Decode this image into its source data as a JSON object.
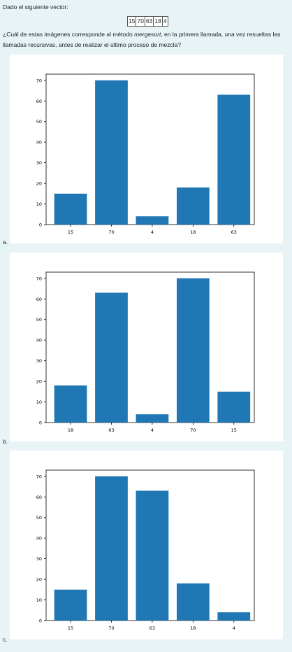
{
  "question": {
    "intro": "Dado el siguiente vector:",
    "vector": [
      "15",
      "70",
      "63",
      "18",
      "4"
    ],
    "text_before": "¿Cuál de estas imágenes corresponde al método ",
    "method": "mergesort",
    "text_after": ", en la primera llamada, una vez resueltas las llamadas recursivas, antes de realizar el último proceso de mezcla?"
  },
  "options": [
    {
      "letter": "a."
    },
    {
      "letter": "b."
    },
    {
      "letter": "c."
    }
  ],
  "colors": {
    "bar": "#1f77b4",
    "background": "#e7f3f5"
  },
  "chart_data": [
    {
      "type": "bar",
      "categories": [
        "15",
        "70",
        "4",
        "18",
        "63"
      ],
      "values": [
        15,
        70,
        4,
        18,
        63
      ],
      "ylim": [
        0,
        73
      ],
      "yticks": [
        0,
        10,
        20,
        30,
        40,
        50,
        60,
        70
      ],
      "grid": false
    },
    {
      "type": "bar",
      "categories": [
        "18",
        "63",
        "4",
        "70",
        "15"
      ],
      "values": [
        18,
        63,
        4,
        70,
        15
      ],
      "ylim": [
        0,
        73
      ],
      "yticks": [
        0,
        10,
        20,
        30,
        40,
        50,
        60,
        70
      ],
      "grid": false
    },
    {
      "type": "bar",
      "categories": [
        "15",
        "70",
        "63",
        "18",
        "4"
      ],
      "values": [
        15,
        70,
        63,
        18,
        4
      ],
      "ylim": [
        0,
        73
      ],
      "yticks": [
        0,
        10,
        20,
        30,
        40,
        50,
        60,
        70
      ],
      "grid": false
    }
  ]
}
